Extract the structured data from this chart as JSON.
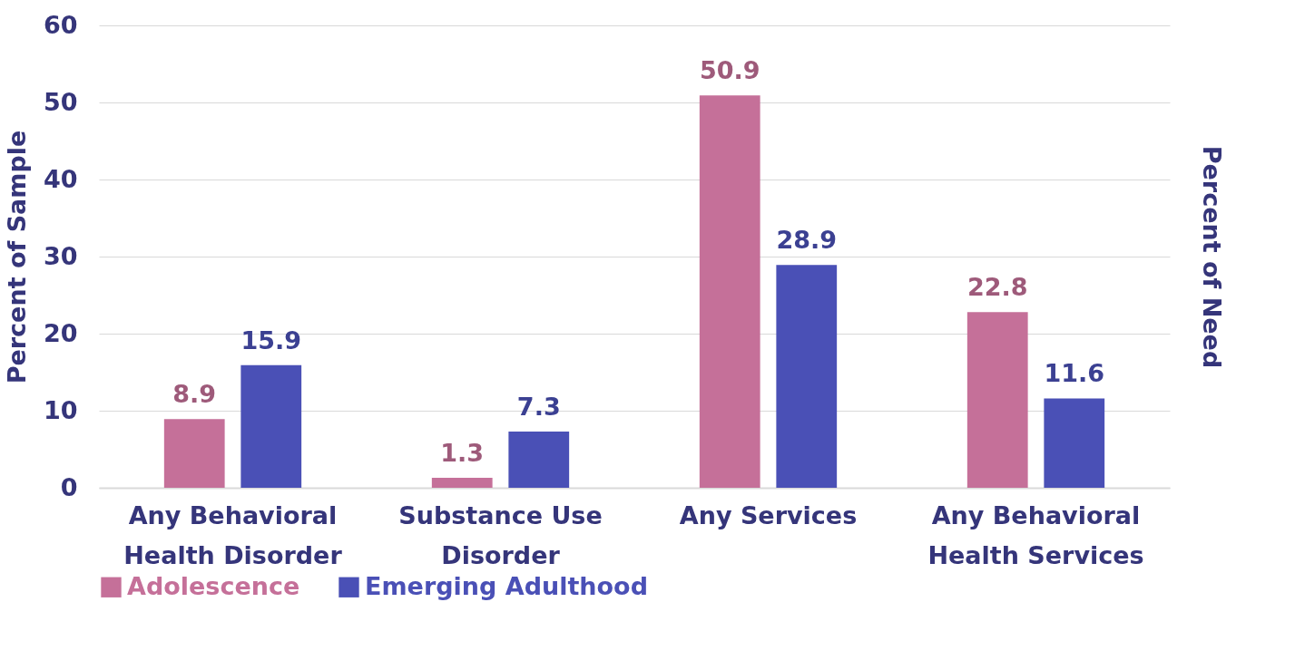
{
  "chart_data": {
    "type": "bar",
    "ylabel": "Percent of Sample",
    "y2label": "Percent of Need",
    "categories": [
      "Any Behavioral Health Disorder",
      "Substance Use Disorder",
      "Any Services",
      "Any Behavioral Health Services"
    ],
    "series": [
      {
        "name": "Adolescence",
        "color": "#c57099",
        "values": [
          8.9,
          1.3,
          50.9,
          22.8
        ]
      },
      {
        "name": "Emerging Adulthood",
        "color": "#4a50b6",
        "values": [
          15.9,
          7.3,
          28.9,
          11.6
        ]
      }
    ],
    "ylim": [
      0,
      60
    ],
    "yticks": [
      0,
      10,
      20,
      30,
      40,
      50,
      60
    ],
    "grid": "y",
    "legend": "bottom",
    "data_labels": true
  }
}
